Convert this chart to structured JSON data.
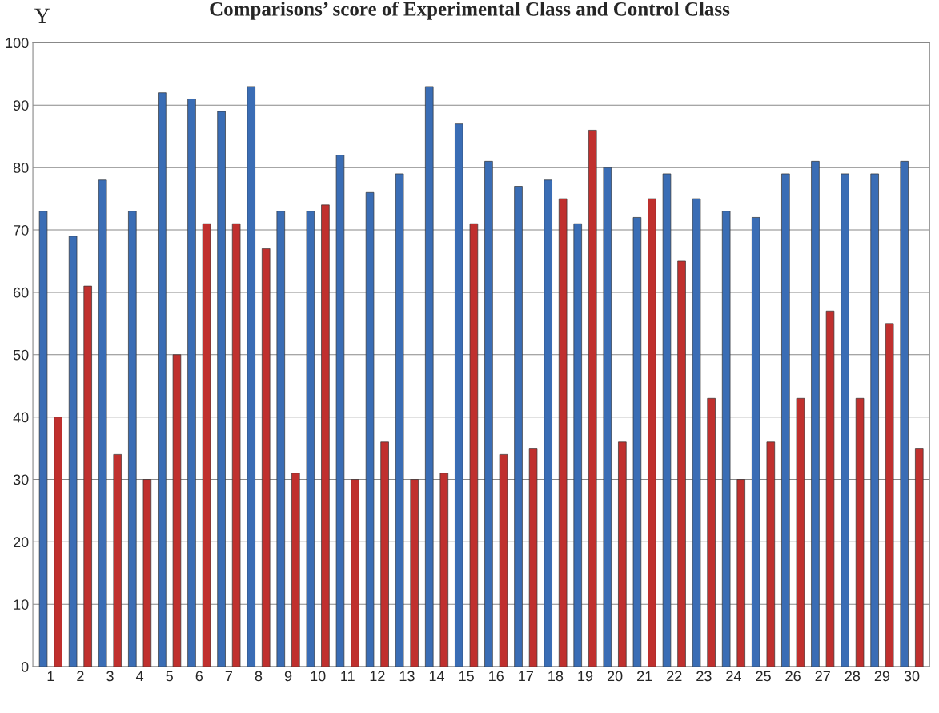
{
  "chart_data": {
    "type": "bar",
    "title": "Comparisons’ score of Experimental Class and Control Class",
    "ylabel": "Y",
    "categories": [
      "1",
      "2",
      "3",
      "4",
      "5",
      "6",
      "7",
      "8",
      "9",
      "10",
      "11",
      "12",
      "13",
      "14",
      "15",
      "16",
      "17",
      "18",
      "19",
      "20",
      "21",
      "22",
      "23",
      "24",
      "25",
      "26",
      "27",
      "28",
      "29",
      "30"
    ],
    "series": [
      {
        "color": "#3a6db5",
        "values": [
          73,
          69,
          78,
          73,
          92,
          91,
          89,
          93,
          73,
          73,
          82,
          76,
          79,
          93,
          87,
          81,
          77,
          78,
          71,
          80,
          72,
          79,
          75,
          73,
          72,
          79,
          81,
          79,
          79,
          81
        ]
      },
      {
        "color": "#c0302e",
        "values": [
          40,
          61,
          34,
          30,
          50,
          71,
          71,
          67,
          31,
          74,
          30,
          36,
          30,
          31,
          71,
          34,
          35,
          75,
          86,
          36,
          75,
          65,
          43,
          30,
          36,
          43,
          57,
          43,
          55,
          35
        ]
      }
    ],
    "ylim": [
      0,
      100
    ],
    "yticks": [
      0,
      10,
      20,
      30,
      40,
      50,
      60,
      70,
      80,
      90,
      100
    ],
    "grid": "y"
  }
}
